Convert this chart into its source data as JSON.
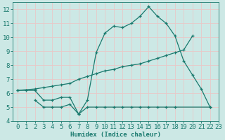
{
  "line1_x": [
    0,
    1,
    2,
    3,
    4,
    5,
    6,
    7,
    8,
    9,
    10,
    11,
    12,
    13,
    14,
    15,
    16,
    17,
    18,
    19,
    20,
    21,
    22
  ],
  "line1_y": [
    6.2,
    6.2,
    6.2,
    5.5,
    5.5,
    5.7,
    5.7,
    4.5,
    5.5,
    8.9,
    10.3,
    10.8,
    10.7,
    11.0,
    11.5,
    12.2,
    11.5,
    11.0,
    10.1,
    8.3,
    7.3,
    6.3,
    5.0
  ],
  "line2_x": [
    0,
    2,
    3,
    4,
    5,
    6,
    7,
    8,
    9,
    10,
    11,
    12,
    13,
    14,
    15,
    16,
    17,
    18,
    19,
    20
  ],
  "line2_y": [
    6.2,
    6.3,
    6.4,
    6.5,
    6.6,
    6.7,
    7.0,
    7.2,
    7.4,
    7.6,
    7.7,
    7.9,
    8.0,
    8.1,
    8.3,
    8.5,
    8.7,
    8.9,
    9.1,
    10.1
  ],
  "line3_x": [
    2,
    3,
    4,
    5,
    6,
    7,
    8,
    9,
    10,
    11,
    12,
    13,
    14,
    15,
    16,
    17,
    18,
    22
  ],
  "line3_y": [
    5.5,
    5.0,
    5.0,
    5.0,
    5.2,
    4.5,
    5.0,
    5.0,
    5.0,
    5.0,
    5.0,
    5.0,
    5.0,
    5.0,
    5.0,
    5.0,
    5.0,
    5.0
  ],
  "color": "#1a7a6e",
  "bg_color": "#cce8e5",
  "grid_color": "#b0d8d4",
  "xlabel": "Humidex (Indice chaleur)",
  "ylim": [
    4,
    12.5
  ],
  "xlim": [
    -0.5,
    23
  ],
  "yticks": [
    4,
    5,
    6,
    7,
    8,
    9,
    10,
    11,
    12
  ],
  "xticks": [
    0,
    1,
    2,
    3,
    4,
    5,
    6,
    7,
    8,
    9,
    10,
    11,
    12,
    13,
    14,
    15,
    16,
    17,
    18,
    19,
    20,
    21,
    22,
    23
  ],
  "font_size": 6.5,
  "marker": "+",
  "marker_size": 3.5,
  "line_width": 0.9
}
